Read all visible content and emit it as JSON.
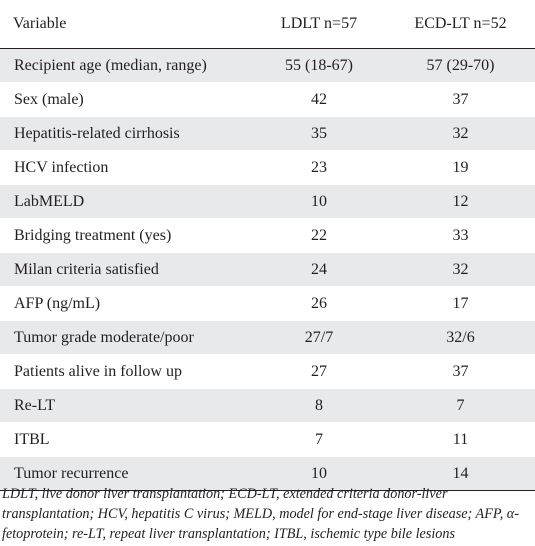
{
  "table": {
    "headers": [
      "Variable",
      "LDLT n=57",
      "ECD-LT n=52"
    ],
    "rows": [
      [
        "Recipient age (median, range)",
        "55 (18-67)",
        "57 (29-70)"
      ],
      [
        "Sex (male)",
        "42",
        "37"
      ],
      [
        "Hepatitis-related cirrhosis",
        "35",
        "32"
      ],
      [
        "HCV infection",
        "23",
        "19"
      ],
      [
        "LabMELD",
        "10",
        "12"
      ],
      [
        "Bridging treatment (yes)",
        "22",
        "33"
      ],
      [
        "Milan criteria satisfied",
        "24",
        "32"
      ],
      [
        "AFP (ng/mL)",
        "26",
        "17"
      ],
      [
        "Tumor grade moderate/poor",
        "27/7",
        "32/6"
      ],
      [
        "Patients alive in follow up",
        "27",
        "37"
      ],
      [
        "Re-LT",
        "8",
        "7"
      ],
      [
        "ITBL",
        "7",
        "11"
      ],
      [
        "Tumor recurrence",
        "10",
        "14"
      ]
    ]
  },
  "footnote": "LDLT, live donor liver transplantation; ECD-LT, extended criteria donor-liver transplantation; HCV, hepatitis C virus; MELD, model for end-stage liver disease; AFP, α-fetoprotein; re-LT, repeat liver transplantation; ITBL, ischemic type bile lesions"
}
